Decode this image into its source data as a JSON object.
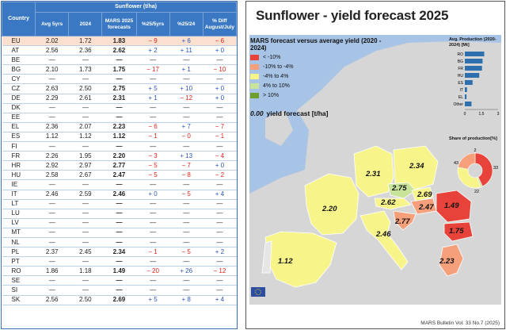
{
  "table": {
    "header_country": "Country",
    "header_group": "Sunflower (t/ha)",
    "columns": [
      "Avg 5yrs",
      "2024",
      "MARS 2025 forecasts",
      "%25/5yrs",
      "%25/24",
      "% Diff August/July"
    ],
    "rows": [
      {
        "c": "EU",
        "v": [
          "2.02",
          "1.72",
          "1.83",
          "− 9",
          "+ 6",
          "− 6"
        ]
      },
      {
        "c": "AT",
        "v": [
          "2.56",
          "2.36",
          "2.62",
          "+ 2",
          "+ 11",
          "+ 0"
        ]
      },
      {
        "c": "BE",
        "v": [
          "—",
          "—",
          "—",
          "—",
          "—",
          "—"
        ]
      },
      {
        "c": "BG",
        "v": [
          "2.10",
          "1.73",
          "1.75",
          "− 17",
          "+ 1",
          "− 10"
        ]
      },
      {
        "c": "CY",
        "v": [
          "—",
          "—",
          "—",
          "—",
          "—",
          "—"
        ]
      },
      {
        "c": "CZ",
        "v": [
          "2.63",
          "2.50",
          "2.75",
          "+ 5",
          "+ 10",
          "+ 0"
        ]
      },
      {
        "c": "DE",
        "v": [
          "2.29",
          "2.61",
          "2.31",
          "+ 1",
          "− 12",
          "+ 0"
        ]
      },
      {
        "c": "DK",
        "v": [
          "—",
          "—",
          "—",
          "—",
          "—",
          "—"
        ]
      },
      {
        "c": "EE",
        "v": [
          "—",
          "—",
          "—",
          "—",
          "—",
          "—"
        ]
      },
      {
        "c": "EL",
        "v": [
          "2.36",
          "2.07",
          "2.23",
          "− 6",
          "+ 7",
          "− 7"
        ]
      },
      {
        "c": "ES",
        "v": [
          "1.12",
          "1.12",
          "1.12",
          "− 1",
          "− 0",
          "− 1"
        ]
      },
      {
        "c": "FI",
        "v": [
          "—",
          "—",
          "—",
          "—",
          "—",
          "—"
        ]
      },
      {
        "c": "FR",
        "v": [
          "2.26",
          "1.95",
          "2.20",
          "− 3",
          "+ 13",
          "− 4"
        ]
      },
      {
        "c": "HR",
        "v": [
          "2.92",
          "2.97",
          "2.77",
          "− 5",
          "− 7",
          "+ 0"
        ]
      },
      {
        "c": "HU",
        "v": [
          "2.58",
          "2.67",
          "2.47",
          "− 5",
          "− 8",
          "− 2"
        ]
      },
      {
        "c": "IE",
        "v": [
          "—",
          "—",
          "—",
          "—",
          "—",
          "—"
        ]
      },
      {
        "c": "IT",
        "v": [
          "2.46",
          "2.59",
          "2.46",
          "+ 0",
          "− 5",
          "+ 4"
        ]
      },
      {
        "c": "LT",
        "v": [
          "—",
          "—",
          "—",
          "—",
          "—",
          "—"
        ]
      },
      {
        "c": "LU",
        "v": [
          "—",
          "—",
          "—",
          "—",
          "—",
          "—"
        ]
      },
      {
        "c": "LV",
        "v": [
          "—",
          "—",
          "—",
          "—",
          "—",
          "—"
        ]
      },
      {
        "c": "MT",
        "v": [
          "—",
          "—",
          "—",
          "—",
          "—",
          "—"
        ]
      },
      {
        "c": "NL",
        "v": [
          "—",
          "—",
          "—",
          "—",
          "—",
          "—"
        ]
      },
      {
        "c": "PL",
        "v": [
          "2.37",
          "2.45",
          "2.34",
          "− 1",
          "− 5",
          "+ 2"
        ]
      },
      {
        "c": "PT",
        "v": [
          "—",
          "—",
          "—",
          "—",
          "—",
          "—"
        ]
      },
      {
        "c": "RO",
        "v": [
          "1.86",
          "1.18",
          "1.49",
          "− 20",
          "+ 26",
          "− 12"
        ]
      },
      {
        "c": "SE",
        "v": [
          "—",
          "—",
          "—",
          "—",
          "—",
          "—"
        ]
      },
      {
        "c": "SI",
        "v": [
          "—",
          "—",
          "—",
          "—",
          "—",
          "—"
        ]
      },
      {
        "c": "SK",
        "v": [
          "2.56",
          "2.50",
          "2.69",
          "+ 5",
          "+ 8",
          "+ 4"
        ]
      }
    ]
  },
  "map": {
    "title": "Sunflower - yield forecast 2025",
    "legend_title": "MARS forecast versus average yield (2020 - 2024)",
    "legend": [
      {
        "label": "< -10%",
        "color": "#e8433a"
      },
      {
        "label": "-10% to -4%",
        "color": "#f5a07a"
      },
      {
        "label": "-4% to 4%",
        "color": "#f7f58a"
      },
      {
        "label": "4% to 10%",
        "color": "#c8e49a"
      },
      {
        "label": "> 10%",
        "color": "#6f9e2f"
      }
    ],
    "forecast_value": "0.00",
    "forecast_label": "yield forecast [t/ha]",
    "country_labels": [
      {
        "id": "ES",
        "text": "1.12"
      },
      {
        "id": "FR",
        "text": "2.20"
      },
      {
        "id": "DE",
        "text": "2.31"
      },
      {
        "id": "PL",
        "text": "2.34"
      },
      {
        "id": "CZ",
        "text": "2.75"
      },
      {
        "id": "SK",
        "text": "2.69"
      },
      {
        "id": "AT",
        "text": "2.62"
      },
      {
        "id": "HU",
        "text": "2.47"
      },
      {
        "id": "HR",
        "text": "2.77"
      },
      {
        "id": "RO",
        "text": "1.49"
      },
      {
        "id": "BG",
        "text": "1.75"
      },
      {
        "id": "IT",
        "text": "2.46"
      },
      {
        "id": "EL",
        "text": "2.23"
      }
    ],
    "footer": "MARS Bulletin Vol. 33 No.7 (2025)"
  },
  "chart_data": [
    {
      "type": "bar",
      "title": "Avg. Production (2020-2024) [Mt]",
      "categories": [
        "RO",
        "BG",
        "FR",
        "HU",
        "ES",
        "IT",
        "EL",
        "Other"
      ],
      "values": [
        1.75,
        1.6,
        1.55,
        1.3,
        0.7,
        0.2,
        0.15,
        0.6
      ],
      "xlim": [
        0,
        3
      ],
      "xticks": [
        "0",
        "1.5",
        "3"
      ],
      "orientation": "horizontal",
      "color": "#2e6fae"
    },
    {
      "type": "pie",
      "title": "Share of production[%]",
      "slices": [
        {
          "value": 43,
          "label": "43",
          "color": "#e8433a"
        },
        {
          "value": 2,
          "label": "2",
          "color": "#c8e49a"
        },
        {
          "value": 33,
          "label": "33",
          "color": "#f7f58a"
        },
        {
          "value": 22,
          "label": "22",
          "color": "#f5a07a"
        }
      ]
    }
  ]
}
